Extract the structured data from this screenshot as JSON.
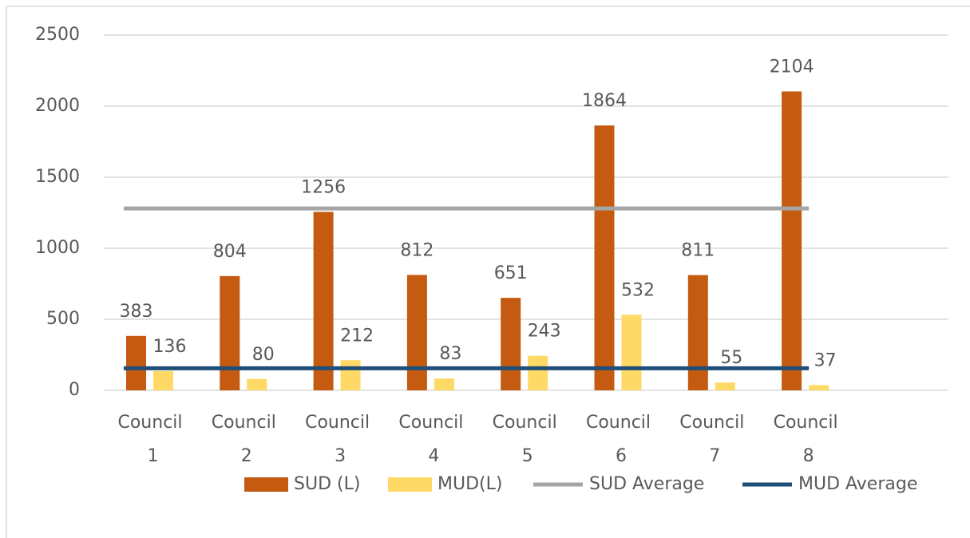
{
  "chart_data": {
    "type": "bar",
    "categories": [
      "Council 1",
      "Council 2",
      "Council 3",
      "Council 4",
      "Council 5",
      "Council 6",
      "Council 7",
      "Council 8"
    ],
    "series": [
      {
        "name": "SUD (L)",
        "type": "bar",
        "color": "#c55a11",
        "values": [
          383,
          804,
          1256,
          812,
          651,
          1864,
          811,
          2104
        ]
      },
      {
        "name": "MUD(L)",
        "type": "bar",
        "color": "#ffd966",
        "values": [
          136,
          80,
          212,
          83,
          243,
          532,
          55,
          37
        ]
      },
      {
        "name": "SUD Average",
        "type": "line",
        "color": "#a5a5a5",
        "values": [
          1280,
          1280,
          1280,
          1280,
          1280,
          1280,
          1280,
          1280
        ]
      },
      {
        "name": "MUD Average",
        "type": "line",
        "color": "#1f4e79",
        "values": [
          155,
          155,
          155,
          155,
          155,
          155,
          155,
          155
        ]
      }
    ],
    "ylim": [
      0,
      2500
    ],
    "yticks": [
      0,
      500,
      1000,
      1500,
      2000,
      2500
    ],
    "grid": true,
    "legend": "bottom"
  }
}
